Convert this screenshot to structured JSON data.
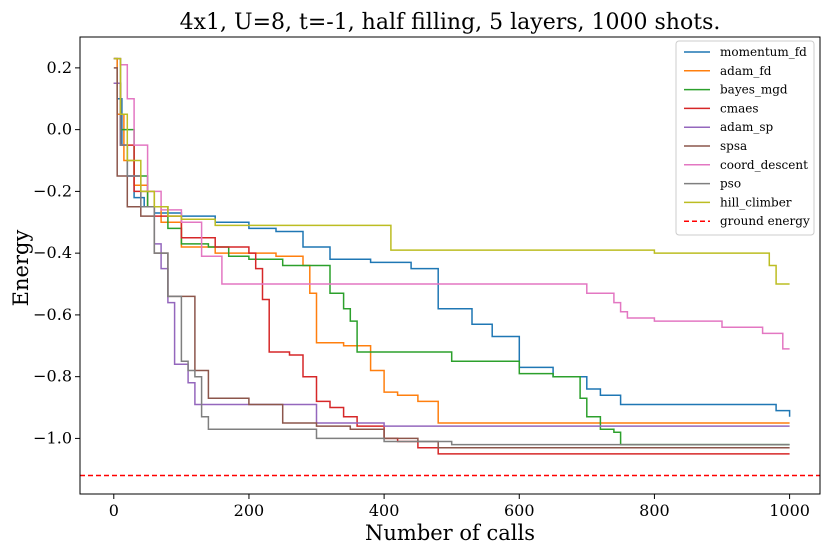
{
  "chart_data": {
    "type": "line",
    "title": "4x1, U=8, t=-1, half filling, 5 layers, 1000 shots.",
    "xlabel": "Number of calls",
    "ylabel": "Energy",
    "xlim": [
      -50,
      1045
    ],
    "ylim": [
      -1.18,
      0.3
    ],
    "xticks": [
      0,
      200,
      400,
      600,
      800,
      1000
    ],
    "xtick_labels": [
      "0",
      "200",
      "400",
      "600",
      "800",
      "1000"
    ],
    "yticks": [
      0.2,
      0.0,
      -0.2,
      -0.4,
      -0.6,
      -0.8,
      -1.0
    ],
    "ytick_labels": [
      "0.2",
      "0.0",
      "−0.2",
      "−0.4",
      "−0.6",
      "−0.8",
      "−1.0"
    ],
    "grid": false,
    "legend_position": "top-right",
    "series": [
      {
        "name": "momentum_fd",
        "color": "#1f77b4",
        "x": [
          0,
          5,
          12,
          20,
          30,
          45,
          60,
          80,
          100,
          150,
          200,
          240,
          280,
          320,
          380,
          440,
          480,
          530,
          560,
          600,
          650,
          700,
          720,
          750,
          800,
          900,
          980,
          1000
        ],
        "y": [
          0.23,
          0.1,
          -0.05,
          -0.15,
          -0.22,
          -0.25,
          -0.27,
          -0.27,
          -0.28,
          -0.3,
          -0.32,
          -0.33,
          -0.38,
          -0.42,
          -0.43,
          -0.45,
          -0.58,
          -0.63,
          -0.67,
          -0.77,
          -0.8,
          -0.84,
          -0.86,
          -0.89,
          -0.89,
          -0.89,
          -0.91,
          -0.93
        ]
      },
      {
        "name": "adam_fd",
        "color": "#ff7f0e",
        "x": [
          0,
          5,
          15,
          30,
          50,
          70,
          100,
          150,
          200,
          240,
          280,
          290,
          300,
          340,
          380,
          400,
          420,
          450,
          480,
          1000
        ],
        "y": [
          0.23,
          0.05,
          -0.1,
          -0.18,
          -0.25,
          -0.3,
          -0.38,
          -0.4,
          -0.4,
          -0.41,
          -0.44,
          -0.53,
          -0.69,
          -0.7,
          -0.78,
          -0.85,
          -0.86,
          -0.88,
          -0.95,
          -0.95
        ]
      },
      {
        "name": "bayes_mgd",
        "color": "#2ca02c",
        "x": [
          0,
          10,
          30,
          50,
          80,
          100,
          140,
          170,
          200,
          250,
          280,
          320,
          340,
          350,
          360,
          400,
          500,
          600,
          650,
          690,
          700,
          720,
          740,
          750,
          1000
        ],
        "y": [
          0.15,
          0.0,
          -0.15,
          -0.25,
          -0.32,
          -0.37,
          -0.38,
          -0.41,
          -0.42,
          -0.44,
          -0.44,
          -0.53,
          -0.58,
          -0.62,
          -0.72,
          -0.72,
          -0.75,
          -0.79,
          -0.8,
          -0.87,
          -0.93,
          -0.97,
          -0.98,
          -1.02,
          -1.02
        ]
      },
      {
        "name": "cmaes",
        "color": "#d62728",
        "x": [
          0,
          10,
          30,
          60,
          100,
          150,
          180,
          200,
          210,
          220,
          230,
          260,
          280,
          300,
          320,
          340,
          360,
          400,
          420,
          450,
          480,
          1000
        ],
        "y": [
          0.15,
          -0.05,
          -0.2,
          -0.28,
          -0.35,
          -0.38,
          -0.38,
          -0.4,
          -0.45,
          -0.55,
          -0.72,
          -0.73,
          -0.8,
          -0.88,
          -0.9,
          -0.93,
          -0.96,
          -1.0,
          -1.01,
          -1.03,
          -1.05,
          -1.05
        ]
      },
      {
        "name": "adam_sp",
        "color": "#9467bd",
        "x": [
          0,
          10,
          20,
          40,
          60,
          70,
          80,
          90,
          100,
          110,
          120,
          150,
          200,
          250,
          300,
          350,
          400,
          1000
        ],
        "y": [
          0.15,
          -0.05,
          -0.15,
          -0.25,
          -0.37,
          -0.45,
          -0.56,
          -0.76,
          -0.76,
          -0.82,
          -0.89,
          -0.89,
          -0.89,
          -0.89,
          -0.95,
          -0.95,
          -0.96,
          -0.96
        ]
      },
      {
        "name": "spsa",
        "color": "#8c564b",
        "x": [
          0,
          5,
          20,
          40,
          60,
          80,
          100,
          120,
          140,
          160,
          200,
          250,
          300,
          350,
          400,
          450,
          480,
          1000
        ],
        "y": [
          0.2,
          -0.15,
          -0.25,
          -0.28,
          -0.4,
          -0.54,
          -0.54,
          -0.78,
          -0.87,
          -0.87,
          -0.89,
          -0.95,
          -0.96,
          -0.97,
          -1.0,
          -1.01,
          -1.03,
          -1.03
        ]
      },
      {
        "name": "coord_descent",
        "color": "#e377c2",
        "x": [
          0,
          10,
          20,
          30,
          50,
          70,
          100,
          130,
          160,
          200,
          300,
          400,
          500,
          600,
          700,
          740,
          750,
          760,
          800,
          860,
          900,
          960,
          990,
          1000
        ],
        "y": [
          0.23,
          0.21,
          0.1,
          -0.05,
          -0.2,
          -0.26,
          -0.3,
          -0.41,
          -0.5,
          -0.5,
          -0.5,
          -0.5,
          -0.5,
          -0.5,
          -0.53,
          -0.56,
          -0.59,
          -0.61,
          -0.62,
          -0.62,
          -0.64,
          -0.66,
          -0.71,
          -0.71
        ]
      },
      {
        "name": "pso",
        "color": "#7f7f7f",
        "x": [
          0,
          10,
          20,
          40,
          60,
          80,
          100,
          110,
          120,
          130,
          140,
          200,
          300,
          400,
          500,
          600,
          1000
        ],
        "y": [
          0.23,
          -0.05,
          -0.15,
          -0.25,
          -0.4,
          -0.54,
          -0.75,
          -0.78,
          -0.8,
          -0.93,
          -0.97,
          -0.97,
          -1.0,
          -1.01,
          -1.02,
          -1.02,
          -1.02
        ]
      },
      {
        "name": "hill_climber",
        "color": "#bcbd22",
        "x": [
          0,
          10,
          20,
          40,
          60,
          80,
          100,
          150,
          200,
          300,
          400,
          410,
          500,
          600,
          700,
          800,
          970,
          980,
          1000
        ],
        "y": [
          0.23,
          0.05,
          -0.1,
          -0.2,
          -0.25,
          -0.28,
          -0.29,
          -0.31,
          -0.31,
          -0.31,
          -0.31,
          -0.39,
          -0.39,
          -0.39,
          -0.39,
          -0.4,
          -0.44,
          -0.5,
          -0.5
        ]
      }
    ],
    "ground_energy": {
      "name": "ground energy",
      "value": -1.12,
      "color": "#ff0000",
      "style": "dashed"
    }
  }
}
